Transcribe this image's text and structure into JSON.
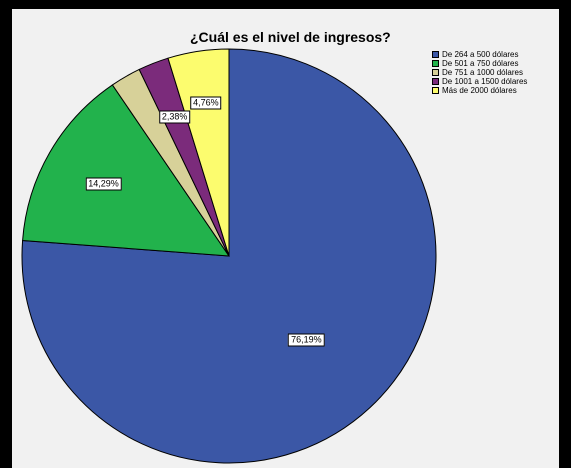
{
  "chart_data": {
    "type": "pie",
    "title": "¿Cuál es el nivel de ingresos?",
    "slices": [
      {
        "label": "De 264 a 500 dólares",
        "value": 76.19,
        "display": "76,19%",
        "color": "#3b57a6"
      },
      {
        "label": "De 501 a 750 dólares",
        "value": 14.29,
        "display": "14,29%",
        "color": "#22b24c"
      },
      {
        "label": "De 751 a 1000 dólares",
        "value": 2.38,
        "display": "",
        "color": "#d7d199"
      },
      {
        "label": "De 1001 a 1500 dólares",
        "value": 2.38,
        "display": "2,38%",
        "color": "#7b2b7b"
      },
      {
        "label": "Más de 2000 dólares",
        "value": 4.76,
        "display": "4,76%",
        "color": "#fcfc6e"
      }
    ],
    "legend_position": "top-right"
  }
}
